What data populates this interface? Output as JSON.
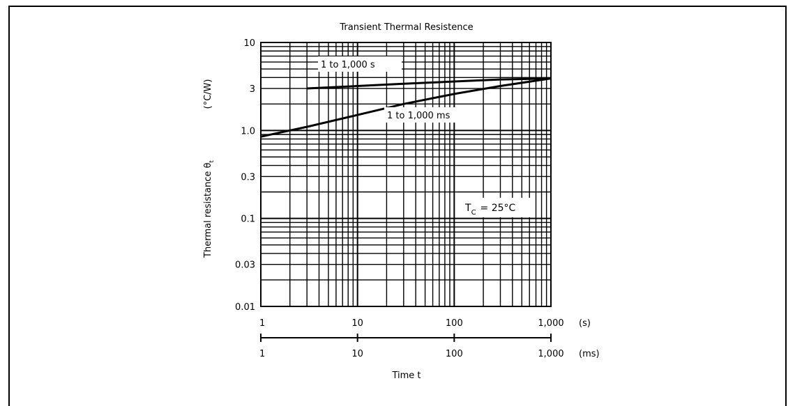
{
  "chart_data": {
    "type": "line",
    "title": "Transient Thermal Resistence",
    "ylabel": "Thermal resistance θ",
    "ylabel_subscript": "t",
    "ylabel_unit": "(°C/W)",
    "xlabel": "Time t",
    "y_scale": "log",
    "x_scale": "log",
    "ylim": [
      0.01,
      10
    ],
    "xlim": [
      1,
      1000
    ],
    "grid": true,
    "y_ticks": [
      {
        "value": 10,
        "label": "10"
      },
      {
        "value": 3,
        "label": "3"
      },
      {
        "value": 1,
        "label": "1.0"
      },
      {
        "value": 0.3,
        "label": "0.3"
      },
      {
        "value": 0.1,
        "label": "0.1"
      },
      {
        "value": 0.03,
        "label": "0.03"
      },
      {
        "value": 0.01,
        "label": "0.01"
      }
    ],
    "x_axes": [
      {
        "unit_label": "(s)",
        "ticks": [
          {
            "value": 1,
            "label": "1"
          },
          {
            "value": 10,
            "label": "10"
          },
          {
            "value": 100,
            "label": "100"
          },
          {
            "value": 1000,
            "label": "1,000"
          }
        ]
      },
      {
        "unit_label": "(ms)",
        "ticks": [
          {
            "value": 1,
            "label": "1"
          },
          {
            "value": 10,
            "label": "10"
          },
          {
            "value": 100,
            "label": "100"
          },
          {
            "value": 1000,
            "label": "1,000"
          }
        ]
      }
    ],
    "series": [
      {
        "name": "1 to 1,000 s",
        "x": [
          3,
          10,
          30,
          100,
          300,
          1000
        ],
        "y": [
          3.0,
          3.2,
          3.4,
          3.6,
          3.8,
          3.9
        ]
      },
      {
        "name": "1 to 1,000 ms",
        "x": [
          1,
          3,
          10,
          30,
          100,
          300,
          1000
        ],
        "y": [
          0.85,
          1.1,
          1.5,
          2.0,
          2.6,
          3.2,
          3.9
        ]
      }
    ],
    "annotations": [
      {
        "text": "T",
        "subscript": "C",
        "suffix": "= 25°C"
      }
    ]
  }
}
